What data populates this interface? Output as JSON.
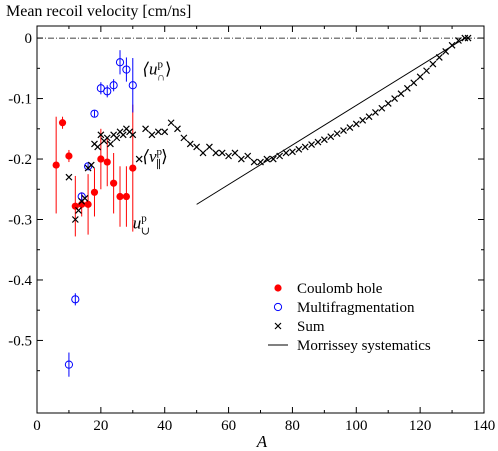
{
  "chart_data": {
    "type": "scatter",
    "title": "Mean recoil velocity [cm/ns]",
    "xlabel": "A",
    "ylabel": "",
    "xlim": [
      0,
      140
    ],
    "ylim": [
      -0.62,
      0.02
    ],
    "xticks": [
      0,
      20,
      40,
      60,
      80,
      100,
      120,
      140
    ],
    "yticks": [
      0,
      -0.1,
      -0.2,
      -0.3,
      -0.4,
      -0.5
    ],
    "ytick_labels": [
      "0",
      "-0.1",
      "-0.2",
      "-0.3",
      "-0.4",
      "-0.5"
    ],
    "grid": false,
    "zero_line": "dash-dot",
    "legend_position": "bottom-right",
    "annotations": [
      {
        "text": "⟨u",
        "sup": "p",
        "sub": "∩",
        "close": "⟩",
        "x": 33,
        "y": -0.06
      },
      {
        "text": "⟨v",
        "sup": "p",
        "sub": "∥",
        "close": "⟩",
        "x": 33,
        "y": -0.205
      },
      {
        "text": "u",
        "sup": "p",
        "sub": "∪",
        "close": "",
        "x": 30,
        "y": -0.315
      }
    ],
    "series": [
      {
        "name": "Coulomb hole",
        "marker": "filled-circle",
        "color": "#ff0000",
        "points": [
          {
            "x": 6,
            "y": -0.21,
            "err": 0.08
          },
          {
            "x": 8,
            "y": -0.14,
            "err": 0.01
          },
          {
            "x": 10,
            "y": -0.195,
            "err": 0.01
          },
          {
            "x": 12,
            "y": -0.278,
            "err": 0.05
          },
          {
            "x": 14,
            "y": -0.275,
            "err": 0.02
          },
          {
            "x": 16,
            "y": -0.275,
            "err": 0.05
          },
          {
            "x": 18,
            "y": -0.255,
            "err": 0.04
          },
          {
            "x": 20,
            "y": -0.2,
            "err": 0.05
          },
          {
            "x": 22,
            "y": -0.205,
            "err": 0.04
          },
          {
            "x": 24,
            "y": -0.24,
            "err": 0.05
          },
          {
            "x": 26,
            "y": -0.262,
            "err": 0.05
          },
          {
            "x": 28,
            "y": -0.262,
            "err": 0.05
          },
          {
            "x": 30,
            "y": -0.215,
            "err": 0.105
          }
        ]
      },
      {
        "name": "Multifragmentation",
        "marker": "open-circle",
        "color": "#0000ff",
        "points": [
          {
            "x": 10,
            "y": -0.54,
            "err": 0.02
          },
          {
            "x": 12,
            "y": -0.432,
            "err": 0.01
          },
          {
            "x": 14,
            "y": -0.262,
            "err": 0.005
          },
          {
            "x": 16,
            "y": -0.212,
            "err": 0.005
          },
          {
            "x": 18,
            "y": -0.125,
            "err": 0.005
          },
          {
            "x": 20,
            "y": -0.083,
            "err": 0.01
          },
          {
            "x": 22,
            "y": -0.088,
            "err": 0.01
          },
          {
            "x": 24,
            "y": -0.078,
            "err": 0.01
          },
          {
            "x": 26,
            "y": -0.04,
            "err": 0.02
          },
          {
            "x": 28,
            "y": -0.052,
            "err": 0.02
          },
          {
            "x": 30,
            "y": -0.078,
            "err": 0.045
          }
        ]
      },
      {
        "name": "Sum",
        "marker": "cross",
        "color": "#000000",
        "points": [
          {
            "x": 10,
            "y": -0.23
          },
          {
            "x": 12,
            "y": -0.3
          },
          {
            "x": 13,
            "y": -0.285
          },
          {
            "x": 14,
            "y": -0.27
          },
          {
            "x": 15,
            "y": -0.265
          },
          {
            "x": 16,
            "y": -0.215
          },
          {
            "x": 17,
            "y": -0.21
          },
          {
            "x": 18,
            "y": -0.175
          },
          {
            "x": 19,
            "y": -0.18
          },
          {
            "x": 20,
            "y": -0.16
          },
          {
            "x": 21,
            "y": -0.17
          },
          {
            "x": 22,
            "y": -0.165
          },
          {
            "x": 23,
            "y": -0.175
          },
          {
            "x": 24,
            "y": -0.16
          },
          {
            "x": 25,
            "y": -0.165
          },
          {
            "x": 26,
            "y": -0.155
          },
          {
            "x": 27,
            "y": -0.16
          },
          {
            "x": 28,
            "y": -0.15
          },
          {
            "x": 29,
            "y": -0.155
          },
          {
            "x": 30,
            "y": -0.16
          },
          {
            "x": 32,
            "y": -0.2
          },
          {
            "x": 34,
            "y": -0.15
          },
          {
            "x": 36,
            "y": -0.16
          },
          {
            "x": 38,
            "y": -0.155
          },
          {
            "x": 40,
            "y": -0.155
          },
          {
            "x": 42,
            "y": -0.14
          },
          {
            "x": 44,
            "y": -0.15
          },
          {
            "x": 46,
            "y": -0.165
          },
          {
            "x": 48,
            "y": -0.175
          },
          {
            "x": 50,
            "y": -0.18
          },
          {
            "x": 52,
            "y": -0.19
          },
          {
            "x": 54,
            "y": -0.18
          },
          {
            "x": 56,
            "y": -0.19
          },
          {
            "x": 58,
            "y": -0.19
          },
          {
            "x": 60,
            "y": -0.195
          },
          {
            "x": 62,
            "y": -0.19
          },
          {
            "x": 64,
            "y": -0.2
          },
          {
            "x": 66,
            "y": -0.195
          },
          {
            "x": 68,
            "y": -0.205
          },
          {
            "x": 70,
            "y": -0.205
          },
          {
            "x": 72,
            "y": -0.2
          },
          {
            "x": 74,
            "y": -0.2
          },
          {
            "x": 76,
            "y": -0.195
          },
          {
            "x": 78,
            "y": -0.19
          },
          {
            "x": 80,
            "y": -0.188
          },
          {
            "x": 82,
            "y": -0.184
          },
          {
            "x": 84,
            "y": -0.18
          },
          {
            "x": 86,
            "y": -0.176
          },
          {
            "x": 88,
            "y": -0.172
          },
          {
            "x": 90,
            "y": -0.168
          },
          {
            "x": 92,
            "y": -0.163
          },
          {
            "x": 94,
            "y": -0.158
          },
          {
            "x": 96,
            "y": -0.153
          },
          {
            "x": 98,
            "y": -0.148
          },
          {
            "x": 100,
            "y": -0.142
          },
          {
            "x": 102,
            "y": -0.136
          },
          {
            "x": 104,
            "y": -0.13
          },
          {
            "x": 106,
            "y": -0.123
          },
          {
            "x": 108,
            "y": -0.116
          },
          {
            "x": 110,
            "y": -0.108
          },
          {
            "x": 112,
            "y": -0.1
          },
          {
            "x": 114,
            "y": -0.092
          },
          {
            "x": 116,
            "y": -0.083
          },
          {
            "x": 118,
            "y": -0.074
          },
          {
            "x": 120,
            "y": -0.064
          },
          {
            "x": 122,
            "y": -0.054
          },
          {
            "x": 124,
            "y": -0.043
          },
          {
            "x": 126,
            "y": -0.032
          },
          {
            "x": 128,
            "y": -0.022
          },
          {
            "x": 130,
            "y": -0.012
          },
          {
            "x": 132,
            "y": -0.004
          },
          {
            "x": 134,
            "y": 0.0
          },
          {
            "x": 135,
            "y": 0.0
          }
        ]
      },
      {
        "name": "Morrissey systematics",
        "marker": "line",
        "color": "#000000",
        "points": [
          {
            "x": 50,
            "y": -0.275
          },
          {
            "x": 134,
            "y": 0.0
          }
        ]
      }
    ]
  }
}
